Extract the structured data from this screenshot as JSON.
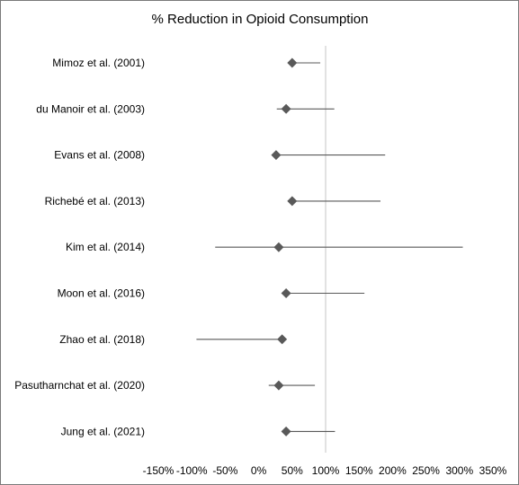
{
  "chart_data": {
    "type": "forest",
    "title": "% Reduction in Opioid Consumption",
    "xlabel": "",
    "ylabel": "",
    "xlim": [
      -150,
      350
    ],
    "reference_line": 100,
    "x_ticks": [
      -150,
      -100,
      -50,
      0,
      50,
      100,
      150,
      200,
      250,
      300,
      350
    ],
    "x_tick_labels": [
      "-150%",
      "-100%",
      "-50%",
      "0%",
      "50%",
      "100%",
      "150%",
      "200%",
      "250%",
      "300%",
      "350%"
    ],
    "studies": [
      {
        "label": "Mimoz et al. (2001)",
        "estimate": 50,
        "lower": 50,
        "upper": 92
      },
      {
        "label": "du Manoir et al. (2003)",
        "estimate": 41,
        "lower": 27,
        "upper": 113
      },
      {
        "label": "Evans et al. (2008)",
        "estimate": 26,
        "lower": 26,
        "upper": 189
      },
      {
        "label": "Richebé et al. (2013)",
        "estimate": 50,
        "lower": 50,
        "upper": 182
      },
      {
        "label": "Kim et al. (2014)",
        "estimate": 30,
        "lower": -65,
        "upper": 305
      },
      {
        "label": "Moon et al. (2016)",
        "estimate": 41,
        "lower": 41,
        "upper": 158
      },
      {
        "label": "Zhao et al. (2018)",
        "estimate": 35,
        "lower": -93,
        "upper": 35
      },
      {
        "label": "Pasutharnchat et al. (2020)",
        "estimate": 30,
        "lower": 15,
        "upper": 84
      },
      {
        "label": "Jung et al. (2021)",
        "estimate": 41,
        "lower": 41,
        "upper": 114
      }
    ],
    "colors": {
      "marker": "#595959",
      "whisker": "#595959",
      "reference_line": "#d9d9d9",
      "border": "#7a7a7a"
    }
  }
}
